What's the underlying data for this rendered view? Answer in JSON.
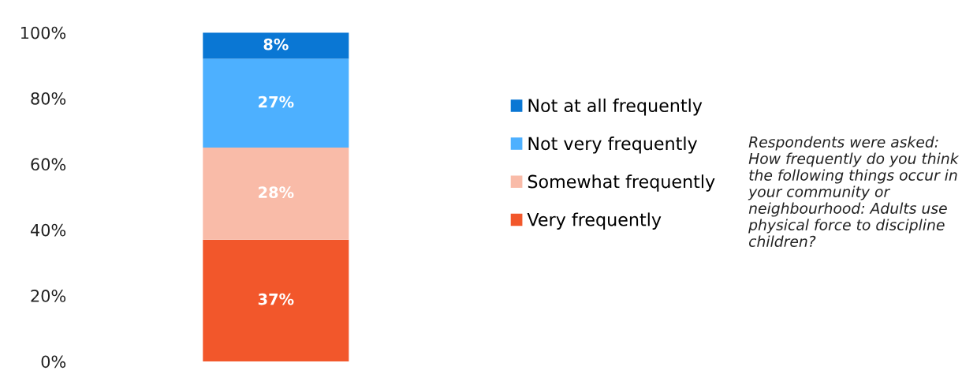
{
  "chart_data": {
    "type": "bar",
    "stacked": true,
    "categories": [
      null
    ],
    "series": [
      {
        "name": "Very frequently",
        "color": "#f2572b",
        "values": [
          37
        ],
        "value_labels": [
          "37%"
        ]
      },
      {
        "name": "Somewhat frequently",
        "color": "#f9bba8",
        "values": [
          28
        ],
        "value_labels": [
          "28%"
        ]
      },
      {
        "name": "Not very frequently",
        "color": "#4db0ff",
        "values": [
          27
        ],
        "value_labels": [
          "27%"
        ]
      },
      {
        "name": "Not at all frequently",
        "color": "#0a77d4",
        "values": [
          8
        ],
        "value_labels": [
          "8%"
        ]
      }
    ],
    "ylim": [
      0,
      100
    ],
    "yticks": [
      {
        "value": 0,
        "label": "0%"
      },
      {
        "value": 20,
        "label": "20%"
      },
      {
        "value": 40,
        "label": "40%"
      },
      {
        "value": 60,
        "label": "60%"
      },
      {
        "value": 80,
        "label": "80%"
      },
      {
        "value": 100,
        "label": "100%"
      }
    ],
    "grid": false,
    "legend": "right",
    "annotations": [
      "Respondents were asked: How frequently do you think the following things occur in your community or neighbourhood: Adults use physical force to discipline children?"
    ]
  }
}
